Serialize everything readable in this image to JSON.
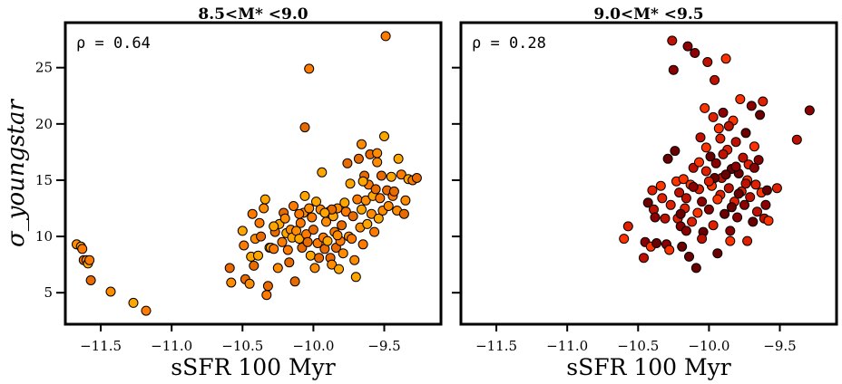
{
  "chart_data": [
    {
      "type": "scatter",
      "title": "8.5<M* <9.0",
      "annotation": "ρ = 0.64",
      "xlabel": "sSFR 100 Myr",
      "ylabel": "σ_youngstar",
      "xlim": [
        -11.75,
        -9.1
      ],
      "ylim": [
        2.2,
        29.0
      ],
      "x_ticks": [
        "−11.5",
        "−11.0",
        "−10.5",
        "−10.0",
        "−9.5"
      ],
      "y_ticks": [
        "5",
        "10",
        "15",
        "20",
        "25"
      ],
      "marker_colors": [
        "#ff8c00",
        "#ffa500",
        "#ff7a00",
        "#e86a00"
      ],
      "points": [
        [
          -11.67,
          9.3
        ],
        [
          -11.64,
          9.1
        ],
        [
          -11.63,
          8.9
        ],
        [
          -11.62,
          7.9
        ],
        [
          -11.6,
          7.9
        ],
        [
          -11.59,
          7.6
        ],
        [
          -11.58,
          7.9
        ],
        [
          -11.57,
          6.1
        ],
        [
          -11.43,
          5.1
        ],
        [
          -11.27,
          4.1
        ],
        [
          -11.18,
          3.4
        ],
        [
          -10.59,
          7.2
        ],
        [
          -10.58,
          5.9
        ],
        [
          -10.5,
          10.5
        ],
        [
          -10.49,
          9.2
        ],
        [
          -10.48,
          6.2
        ],
        [
          -10.45,
          5.8
        ],
        [
          -10.44,
          8.2
        ],
        [
          -10.43,
          12.0
        ],
        [
          -10.42,
          7.4
        ],
        [
          -10.41,
          9.8
        ],
        [
          -10.39,
          8.3
        ],
        [
          -10.38,
          11.2
        ],
        [
          -10.37,
          10.0
        ],
        [
          -10.35,
          12.5
        ],
        [
          -10.34,
          13.3
        ],
        [
          -10.33,
          4.8
        ],
        [
          -10.32,
          5.6
        ],
        [
          -10.31,
          9.0
        ],
        [
          -10.3,
          9.0
        ],
        [
          -10.28,
          8.9
        ],
        [
          -10.27,
          10.4
        ],
        [
          -10.25,
          7.2
        ],
        [
          -10.24,
          11.1
        ],
        [
          -10.22,
          9.5
        ],
        [
          -10.21,
          12.1
        ],
        [
          -10.2,
          11.6
        ],
        [
          -10.19,
          10.3
        ],
        [
          -10.18,
          8.8
        ],
        [
          -10.17,
          7.7
        ],
        [
          -10.16,
          10.6
        ],
        [
          -10.15,
          9.9
        ],
        [
          -10.14,
          12.7
        ],
        [
          -10.13,
          6.0
        ],
        [
          -10.12,
          10.5
        ],
        [
          -10.1,
          9.8
        ],
        [
          -10.09,
          11.2
        ],
        [
          -10.08,
          9.0
        ],
        [
          -10.07,
          12.1
        ],
        [
          -10.06,
          13.6
        ],
        [
          -10.05,
          10.2
        ],
        [
          -10.04,
          9.5
        ],
        [
          -10.03,
          12.5
        ],
        [
          -10.02,
          8.3
        ],
        [
          -10.01,
          11.7
        ],
        [
          -10.0,
          10.6
        ],
        [
          -9.99,
          7.2
        ],
        [
          -9.98,
          13.1
        ],
        [
          -9.97,
          9.4
        ],
        [
          -9.96,
          8.1
        ],
        [
          -9.95,
          12.4
        ],
        [
          -9.94,
          15.7
        ],
        [
          -9.93,
          9.9
        ],
        [
          -9.92,
          8.9
        ],
        [
          -9.91,
          11.3
        ],
        [
          -9.9,
          9.6
        ],
        [
          -9.89,
          12.2
        ],
        [
          -9.88,
          8.1
        ],
        [
          -9.87,
          7.5
        ],
        [
          -9.86,
          11.8
        ],
        [
          -9.85,
          10.4
        ],
        [
          -9.84,
          9.0
        ],
        [
          -9.83,
          12.5
        ],
        [
          -9.82,
          7.1
        ],
        [
          -9.81,
          9.6
        ],
        [
          -9.8,
          11.0
        ],
        [
          -9.79,
          8.5
        ],
        [
          -9.78,
          13.0
        ],
        [
          -9.77,
          12.2
        ],
        [
          -9.76,
          16.5
        ],
        [
          -9.75,
          10.0
        ],
        [
          -9.74,
          14.7
        ],
        [
          -9.73,
          9.8
        ],
        [
          -9.72,
          11.8
        ],
        [
          -9.71,
          7.9
        ],
        [
          -9.7,
          6.4
        ],
        [
          -9.69,
          13.3
        ],
        [
          -9.68,
          16.9
        ],
        [
          -9.67,
          10.8
        ],
        [
          -9.66,
          12.4
        ],
        [
          -9.65,
          9.3
        ],
        [
          -9.64,
          15.4
        ],
        [
          -9.63,
          13.2
        ],
        [
          -9.62,
          11.1
        ],
        [
          -9.61,
          14.6
        ],
        [
          -9.6,
          17.3
        ],
        [
          -9.59,
          12.0
        ],
        [
          -9.58,
          13.6
        ],
        [
          -9.57,
          10.4
        ],
        [
          -9.56,
          14.2
        ],
        [
          -9.55,
          16.6
        ],
        [
          -9.54,
          11.6
        ],
        [
          -9.53,
          13.4
        ],
        [
          -9.52,
          15.4
        ],
        [
          -9.51,
          12.3
        ],
        [
          -9.5,
          18.9
        ],
        [
          -9.49,
          27.8
        ],
        [
          -9.48,
          14.1
        ],
        [
          -9.47,
          12.7
        ],
        [
          -9.45,
          15.3
        ],
        [
          -9.44,
          13.6
        ],
        [
          -9.43,
          14.0
        ],
        [
          -9.41,
          12.3
        ],
        [
          -9.4,
          16.9
        ],
        [
          -9.38,
          15.5
        ],
        [
          -9.36,
          12.0
        ],
        [
          -9.35,
          13.2
        ],
        [
          -9.33,
          15.1
        ],
        [
          -9.3,
          15.0
        ],
        [
          -9.27,
          15.2
        ],
        [
          -9.66,
          18.2
        ],
        [
          -9.65,
          14.9
        ],
        [
          -10.03,
          24.9
        ],
        [
          -10.06,
          19.7
        ],
        [
          -9.55,
          17.4
        ],
        [
          -10.28,
          10.9
        ],
        [
          -10.1,
          12.0
        ],
        [
          -9.87,
          12.4
        ],
        [
          -9.83,
          10.1
        ],
        [
          -9.92,
          12.1
        ]
      ]
    },
    {
      "type": "scatter",
      "title": "9.0<M* <9.5",
      "annotation": "ρ = 0.28",
      "xlabel": "sSFR 100 Myr",
      "xlim": [
        -11.75,
        -9.1
      ],
      "ylim": [
        2.2,
        29.0
      ],
      "x_ticks": [
        "−11.5",
        "−11.0",
        "−10.5",
        "−10.0",
        "−9.5"
      ],
      "marker_colors": [
        "#ff3300",
        "#e02000",
        "#c01000",
        "#8b0000",
        "#6a0000"
      ],
      "points": [
        [
          -10.6,
          9.8
        ],
        [
          -10.57,
          10.9
        ],
        [
          -10.46,
          8.1
        ],
        [
          -10.45,
          9.5
        ],
        [
          -10.43,
          13.0
        ],
        [
          -10.41,
          9.1
        ],
        [
          -10.4,
          14.1
        ],
        [
          -10.39,
          12.4
        ],
        [
          -10.38,
          11.7
        ],
        [
          -10.37,
          9.4
        ],
        [
          -10.34,
          14.5
        ],
        [
          -10.33,
          13.4
        ],
        [
          -10.31,
          11.6
        ],
        [
          -10.3,
          9.3
        ],
        [
          -10.29,
          16.9
        ],
        [
          -10.28,
          8.8
        ],
        [
          -10.27,
          12.8
        ],
        [
          -10.26,
          27.4
        ],
        [
          -10.25,
          24.8
        ],
        [
          -10.24,
          17.6
        ],
        [
          -10.23,
          14.9
        ],
        [
          -10.22,
          11.6
        ],
        [
          -10.21,
          13.9
        ],
        [
          -10.2,
          10.9
        ],
        [
          -10.19,
          9.1
        ],
        [
          -10.18,
          15.1
        ],
        [
          -10.17,
          12.5
        ],
        [
          -10.16,
          13.4
        ],
        [
          -10.15,
          26.9
        ],
        [
          -10.14,
          8.2
        ],
        [
          -10.13,
          14.6
        ],
        [
          -10.12,
          11.3
        ],
        [
          -10.11,
          16.1
        ],
        [
          -10.1,
          26.3
        ],
        [
          -10.09,
          7.2
        ],
        [
          -10.08,
          12.1
        ],
        [
          -10.07,
          14.2
        ],
        [
          -10.06,
          18.8
        ],
        [
          -10.05,
          13.1
        ],
        [
          -10.04,
          10.4
        ],
        [
          -10.03,
          21.4
        ],
        [
          -10.02,
          15.8
        ],
        [
          -10.01,
          25.5
        ],
        [
          -10.0,
          12.4
        ],
        [
          -9.99,
          17.1
        ],
        [
          -9.98,
          14.5
        ],
        [
          -9.97,
          11.0
        ],
        [
          -9.96,
          23.9
        ],
        [
          -9.95,
          16.5
        ],
        [
          -9.94,
          8.5
        ],
        [
          -9.93,
          19.6
        ],
        [
          -9.92,
          13.7
        ],
        [
          -9.91,
          15.2
        ],
        [
          -9.9,
          21.0
        ],
        [
          -9.89,
          12.0
        ],
        [
          -9.88,
          25.8
        ],
        [
          -9.87,
          17.7
        ],
        [
          -9.86,
          14.3
        ],
        [
          -9.85,
          10.5
        ],
        [
          -9.84,
          16.0
        ],
        [
          -9.83,
          20.3
        ],
        [
          -9.82,
          13.1
        ],
        [
          -9.81,
          18.4
        ],
        [
          -9.8,
          11.7
        ],
        [
          -9.79,
          15.6
        ],
        [
          -9.78,
          22.2
        ],
        [
          -9.77,
          14.0
        ],
        [
          -9.76,
          17.0
        ],
        [
          -9.75,
          12.8
        ],
        [
          -9.74,
          19.2
        ],
        [
          -9.73,
          15.0
        ],
        [
          -9.72,
          16.4
        ],
        [
          -9.71,
          13.5
        ],
        [
          -9.7,
          21.6
        ],
        [
          -9.69,
          11.3
        ],
        [
          -9.68,
          18.0
        ],
        [
          -9.67,
          14.6
        ],
        [
          -9.66,
          12.2
        ],
        [
          -9.65,
          16.8
        ],
        [
          -9.64,
          20.8
        ],
        [
          -9.63,
          13.9
        ],
        [
          -9.62,
          22.0
        ],
        [
          -9.61,
          11.6
        ],
        [
          -9.6,
          12.8
        ],
        [
          -9.59,
          14.1
        ],
        [
          -9.58,
          11.4
        ],
        [
          -9.52,
          14.3
        ],
        [
          -9.38,
          18.6
        ],
        [
          -9.29,
          21.2
        ],
        [
          -9.96,
          15.2
        ],
        [
          -10.02,
          17.9
        ],
        [
          -9.92,
          18.7
        ],
        [
          -9.86,
          19.8
        ],
        [
          -9.81,
          16.2
        ],
        [
          -9.88,
          15.5
        ],
        [
          -9.94,
          13.3
        ],
        [
          -10.0,
          14.9
        ],
        [
          -9.74,
          14.7
        ],
        [
          -9.68,
          16.1
        ],
        [
          -9.84,
          12.6
        ],
        [
          -10.07,
          16.6
        ],
        [
          -9.97,
          20.6
        ],
        [
          -9.9,
          17.3
        ],
        [
          -10.11,
          14.4
        ],
        [
          -9.79,
          13.8
        ],
        [
          -9.85,
          9.6
        ],
        [
          -9.73,
          9.6
        ],
        [
          -10.05,
          9.8
        ],
        [
          -10.16,
          10.5
        ],
        [
          -10.2,
          12.0
        ]
      ]
    }
  ]
}
